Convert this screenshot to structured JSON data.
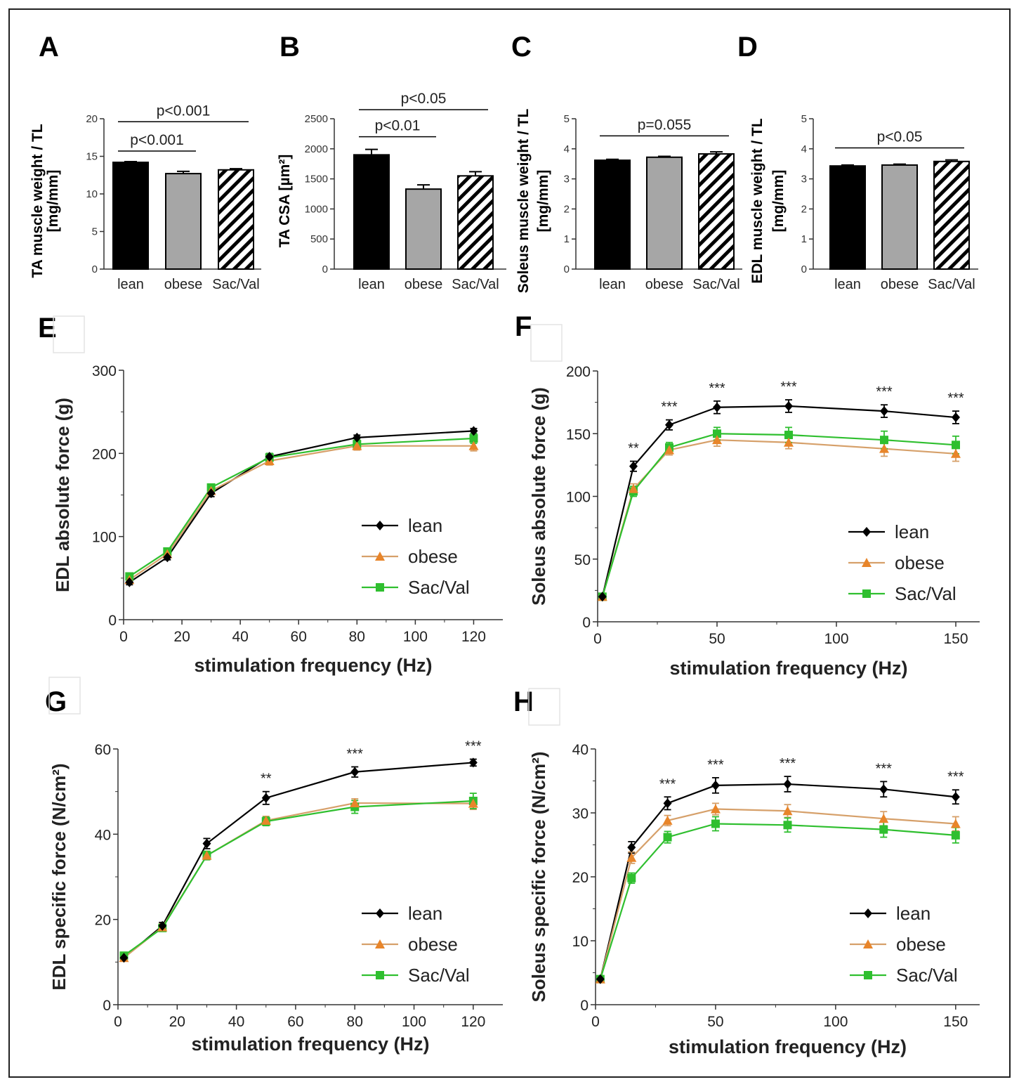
{
  "colors": {
    "lean": "#000000",
    "obese": "#e8852a",
    "sacval": "#2fbf2f",
    "obese_line": "#d6a06a",
    "gray_bar": "#a6a6a6",
    "frame": "#222222"
  },
  "chart_data": [
    {
      "panel": "A",
      "type": "bar",
      "ylabel": [
        "TA muscle weight / TL",
        "[mg/mm]"
      ],
      "ylim": [
        0,
        20
      ],
      "yticks": [
        0,
        5,
        10,
        15,
        20
      ],
      "categories": [
        "lean",
        "obese",
        "Sac/Val"
      ],
      "values": [
        14.2,
        12.7,
        13.2
      ],
      "errors": [
        0.1,
        0.3,
        0.15
      ],
      "fills": [
        "black",
        "gray",
        "hatch"
      ],
      "annotations": [
        {
          "text": "p<0.001",
          "from": 0,
          "to": 1,
          "y": 15.7
        },
        {
          "text": "p<0.001",
          "from": 0,
          "to": 2,
          "y": 19.6
        }
      ]
    },
    {
      "panel": "B",
      "type": "bar",
      "ylabel": [
        "TA CSA [µm²]"
      ],
      "ylim": [
        0,
        2500
      ],
      "yticks": [
        0,
        500,
        1000,
        1500,
        2000,
        2500
      ],
      "categories": [
        "lean",
        "obese",
        "Sac/Val"
      ],
      "values": [
        1900,
        1330,
        1550
      ],
      "errors": [
        90,
        70,
        70
      ],
      "fills": [
        "black",
        "gray",
        "hatch"
      ],
      "annotations": [
        {
          "text": "p<0.01",
          "from": 0,
          "to": 1,
          "y": 2200
        },
        {
          "text": "p<0.05",
          "from": 0,
          "to": 2,
          "y": 2650
        }
      ]
    },
    {
      "panel": "C",
      "type": "bar",
      "ylabel": [
        "Soleus muscle weight / TL",
        "[mg/mm]"
      ],
      "ylim": [
        0,
        5
      ],
      "yticks": [
        0,
        1,
        2,
        3,
        4,
        5
      ],
      "categories": [
        "lean",
        "obese",
        "Sac/Val"
      ],
      "values": [
        3.62,
        3.72,
        3.83
      ],
      "errors": [
        0.03,
        0.03,
        0.07
      ],
      "fills": [
        "black",
        "gray",
        "hatch"
      ],
      "annotations": [
        {
          "text": "p=0.055",
          "from": 0,
          "to": 2,
          "y": 4.43
        }
      ]
    },
    {
      "panel": "D",
      "type": "bar",
      "ylabel": [
        "EDL muscle weight / TL",
        "[mg/mm]"
      ],
      "ylim": [
        0,
        5
      ],
      "yticks": [
        0,
        1,
        2,
        3,
        4,
        5
      ],
      "categories": [
        "lean",
        "obese",
        "Sac/Val"
      ],
      "values": [
        3.43,
        3.46,
        3.58
      ],
      "errors": [
        0.03,
        0.03,
        0.05
      ],
      "fills": [
        "black",
        "gray",
        "hatch"
      ],
      "annotations": [
        {
          "text": "p<0.05",
          "from": 0,
          "to": 2,
          "y": 4.03
        }
      ]
    },
    {
      "panel": "E",
      "type": "line",
      "xlabel": "stimulation  frequency (Hz)",
      "ylabel": "EDL absolute force (g)",
      "xlim": [
        0,
        130
      ],
      "xticks": [
        0,
        20,
        40,
        60,
        80,
        100,
        120
      ],
      "ylim": [
        0,
        300
      ],
      "yticks": [
        0,
        100,
        200,
        300
      ],
      "x": [
        2,
        15,
        30,
        50,
        80,
        120
      ],
      "series": [
        {
          "name": "lean",
          "values": [
            45,
            75,
            152,
            196,
            219,
            227
          ],
          "errors": [
            3,
            3,
            4,
            4,
            3,
            3
          ]
        },
        {
          "name": "obese",
          "values": [
            48,
            79,
            155,
            191,
            209,
            209
          ],
          "errors": [
            3,
            3,
            4,
            5,
            5,
            6
          ]
        },
        {
          "name": "Sac/Val",
          "values": [
            52,
            82,
            159,
            195,
            211,
            218
          ],
          "errors": [
            3,
            3,
            3,
            5,
            5,
            6
          ]
        }
      ],
      "stars": [],
      "legend": "bottom-right"
    },
    {
      "panel": "F",
      "type": "line",
      "xlabel": "stimulation  frequency (Hz)",
      "ylabel": "Soleus absolute force (g)",
      "xlim": [
        0,
        160
      ],
      "xticks": [
        0,
        50,
        100,
        150
      ],
      "ylim": [
        0,
        200
      ],
      "yticks": [
        0,
        50,
        100,
        150,
        200
      ],
      "x": [
        2,
        15,
        30,
        50,
        80,
        120,
        150
      ],
      "series": [
        {
          "name": "lean",
          "values": [
            20,
            124,
            157,
            171,
            172,
            168,
            163
          ],
          "errors": [
            2,
            4,
            4,
            5,
            5,
            5,
            5
          ]
        },
        {
          "name": "obese",
          "values": [
            20,
            106,
            137,
            145,
            143,
            138,
            134
          ],
          "errors": [
            2,
            4,
            4,
            5,
            5,
            6,
            6
          ]
        },
        {
          "name": "Sac/Val",
          "values": [
            20,
            104,
            139,
            150,
            149,
            145,
            141
          ],
          "errors": [
            2,
            4,
            4,
            5,
            6,
            7,
            7
          ]
        }
      ],
      "stars": [
        {
          "x": 15,
          "text": "**"
        },
        {
          "x": 30,
          "text": "***"
        },
        {
          "x": 50,
          "text": "***"
        },
        {
          "x": 80,
          "text": "***"
        },
        {
          "x": 120,
          "text": "***"
        },
        {
          "x": 150,
          "text": "***"
        }
      ],
      "legend": "bottom-right"
    },
    {
      "panel": "G",
      "type": "line",
      "xlabel": "stimulation  frequency (Hz)",
      "ylabel": "EDL specific force (N/cm²)",
      "xlim": [
        0,
        130
      ],
      "xticks": [
        0,
        20,
        40,
        60,
        80,
        100,
        120
      ],
      "ylim": [
        0,
        60
      ],
      "yticks": [
        0,
        20,
        40,
        60
      ],
      "x": [
        2,
        15,
        30,
        50,
        80,
        120
      ],
      "series": [
        {
          "name": "lean",
          "values": [
            11,
            18.5,
            37.8,
            48.5,
            54.6,
            56.8
          ],
          "errors": [
            0.6,
            0.8,
            1.2,
            1.5,
            1.2,
            0.8
          ]
        },
        {
          "name": "obese",
          "values": [
            11,
            18.2,
            35,
            43.2,
            47.3,
            47.2
          ],
          "errors": [
            0.6,
            0.8,
            1,
            1,
            1,
            1.4
          ]
        },
        {
          "name": "Sac/Val",
          "values": [
            11.5,
            18,
            35,
            43,
            46.4,
            47.8
          ],
          "errors": [
            0.6,
            0.8,
            1,
            1,
            1.5,
            1.8
          ]
        }
      ],
      "stars": [
        {
          "x": 50,
          "text": "**"
        },
        {
          "x": 80,
          "text": "***"
        },
        {
          "x": 120,
          "text": "***"
        }
      ],
      "legend": "bottom-right"
    },
    {
      "panel": "H",
      "type": "line",
      "xlabel": "stimulation  frequency (Hz)",
      "ylabel": "Soleus specific force (N/cm²)",
      "xlim": [
        0,
        160
      ],
      "xticks": [
        0,
        50,
        100,
        150
      ],
      "ylim": [
        0,
        40
      ],
      "yticks": [
        0,
        10,
        20,
        30,
        40
      ],
      "x": [
        2,
        15,
        30,
        50,
        80,
        120,
        150
      ],
      "series": [
        {
          "name": "lean",
          "values": [
            4,
            24.6,
            31.5,
            34.3,
            34.5,
            33.7,
            32.5
          ],
          "errors": [
            0.4,
            0.9,
            1,
            1.2,
            1.2,
            1.2,
            1.1
          ]
        },
        {
          "name": "obese",
          "values": [
            4,
            23,
            28.8,
            30.6,
            30.3,
            29.1,
            28.3
          ],
          "errors": [
            0.4,
            0.9,
            0.8,
            0.9,
            1,
            1.1,
            1.1
          ]
        },
        {
          "name": "Sac/Val",
          "values": [
            4,
            19.8,
            26.2,
            28.3,
            28.1,
            27.4,
            26.5
          ],
          "errors": [
            0.4,
            0.8,
            0.9,
            1.1,
            1.1,
            1.2,
            1.2
          ]
        }
      ],
      "stars": [
        {
          "x": 30,
          "text": "***"
        },
        {
          "x": 50,
          "text": "***"
        },
        {
          "x": 80,
          "text": "***"
        },
        {
          "x": 120,
          "text": "***"
        },
        {
          "x": 150,
          "text": "***"
        }
      ],
      "legend": "bottom-right"
    }
  ]
}
